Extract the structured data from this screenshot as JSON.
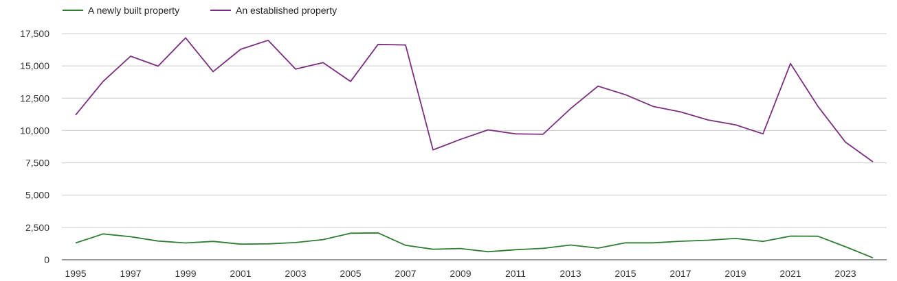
{
  "chart_data": {
    "type": "line",
    "title": "",
    "xlabel": "",
    "ylabel": "",
    "x": [
      1995,
      1996,
      1997,
      1998,
      1999,
      2000,
      2001,
      2002,
      2003,
      2004,
      2005,
      2006,
      2007,
      2008,
      2009,
      2010,
      2011,
      2012,
      2013,
      2014,
      2015,
      2016,
      2017,
      2018,
      2019,
      2020,
      2021,
      2022,
      2023,
      2024
    ],
    "xticks": [
      "1995",
      "1997",
      "1999",
      "2001",
      "2003",
      "2005",
      "2007",
      "2009",
      "2011",
      "2013",
      "2015",
      "2017",
      "2019",
      "2021",
      "2023"
    ],
    "ylim": [
      0,
      17500
    ],
    "yticks": [
      "0",
      "2,500",
      "5,000",
      "7,500",
      "10,000",
      "12,500",
      "15,000",
      "17,500"
    ],
    "grid": true,
    "legend_position": "top-left",
    "series": [
      {
        "name": "A newly built property",
        "color": "#2e7d32",
        "values": [
          1300,
          2000,
          1780,
          1450,
          1300,
          1420,
          1210,
          1230,
          1330,
          1560,
          2050,
          2080,
          1120,
          810,
          870,
          620,
          780,
          880,
          1140,
          900,
          1310,
          1310,
          1430,
          1510,
          1650,
          1420,
          1830,
          1820,
          1010,
          150
        ]
      },
      {
        "name": "An established property",
        "color": "#7b2d7f",
        "values": [
          11200,
          13800,
          15750,
          14980,
          17170,
          14550,
          16280,
          16980,
          14760,
          15250,
          13800,
          16660,
          16620,
          8500,
          9320,
          10050,
          9740,
          9710,
          11690,
          13430,
          12770,
          11870,
          11440,
          10820,
          10440,
          9740,
          15180,
          11870,
          9100,
          7580
        ]
      }
    ]
  }
}
